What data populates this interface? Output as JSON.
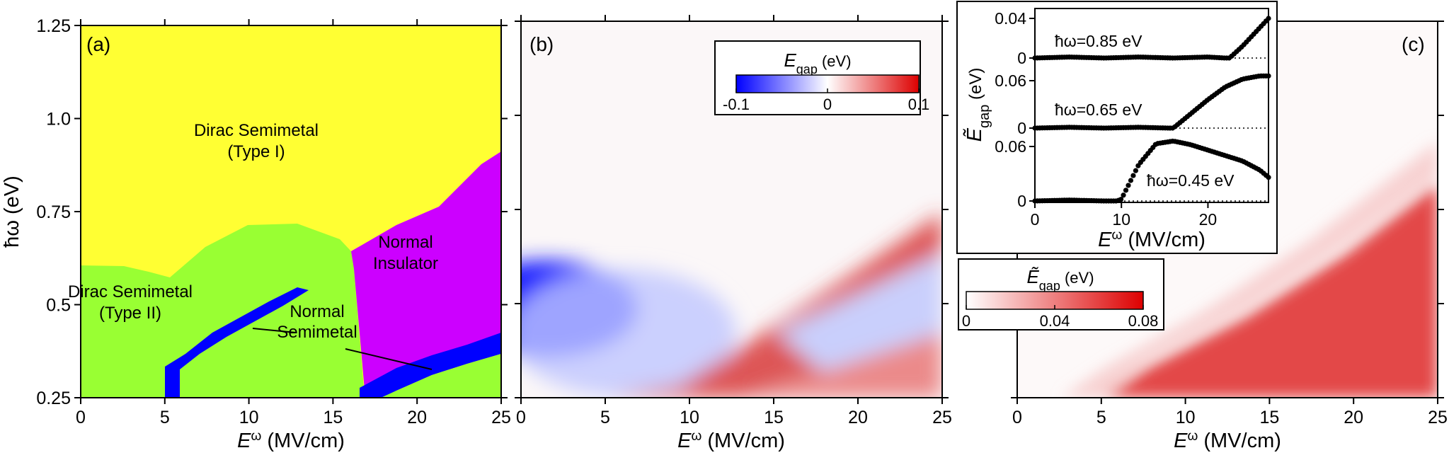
{
  "chart_data": [
    {
      "type": "heatmap",
      "panel_letter": "(a)",
      "title": "",
      "xlabel_base": "E",
      "xlabel_sup": "ω",
      "xlabel_unit": " (MV/cm)",
      "ylabel": "ħω (eV)",
      "xlim": [
        0,
        25
      ],
      "ylim": [
        0.25,
        1.25
      ],
      "xticks": [
        "0",
        "5",
        "10",
        "15",
        "20",
        "25"
      ],
      "yticks": [
        "0.25",
        "0.5",
        "0.75",
        "1.0",
        "1.25"
      ],
      "regions": [
        {
          "name": "Dirac Semimetal (Type I)",
          "line1": "Dirac Semimetal",
          "line2": "(Type I)",
          "color": "#ffff33"
        },
        {
          "name": "Dirac Semimetal (Type II)",
          "line1": "Dirac Semimetal",
          "line2": "(Type II)",
          "color": "#99ff33"
        },
        {
          "name": "Normal Insulator",
          "line1": "Normal",
          "line2": "Insulator",
          "color": "#cc00ff"
        },
        {
          "name": "Normal Semimetal",
          "line1": "Normal",
          "line2": "Semimetal",
          "color": "#0000ff"
        }
      ],
      "boundaries": {
        "typeI_typeII": [
          [
            0,
            0.6
          ],
          [
            5,
            0.55
          ],
          [
            8,
            0.65
          ],
          [
            13,
            0.72
          ],
          [
            15,
            0.68
          ]
        ],
        "insulator_upper": [
          [
            13,
            0.6
          ],
          [
            20,
            0.75
          ],
          [
            25,
            0.9
          ]
        ],
        "semimetal_band_upper": [
          [
            5,
            0.33
          ],
          [
            14,
            0.63
          ]
        ],
        "semimetal_band_lower": [
          [
            15,
            0.25
          ],
          [
            25,
            0.43
          ]
        ]
      }
    },
    {
      "type": "heatmap",
      "panel_letter": "(b)",
      "title": "",
      "xlabel_base": "E",
      "xlabel_sup": "ω",
      "xlabel_unit": " (MV/cm)",
      "ylabel": "",
      "xlim": [
        0,
        25
      ],
      "ylim": [
        0.25,
        1.25
      ],
      "xticks": [
        "0",
        "5",
        "10",
        "15",
        "20",
        "25"
      ],
      "colorbar": {
        "title_base": "E",
        "title_sub": "gap",
        "title_unit": " (eV)",
        "min": -0.1,
        "max": 0.1,
        "ticks": [
          "-0.1",
          "0",
          "0.1"
        ],
        "colors": [
          "#0000ff",
          "#ffffff",
          "#dd0000"
        ]
      }
    },
    {
      "type": "heatmap",
      "panel_letter": "(c)",
      "title": "",
      "xlabel_base": "E",
      "xlabel_sup": "ω",
      "xlabel_unit": " (MV/cm)",
      "ylabel": "",
      "xlim": [
        0,
        25
      ],
      "ylim": [
        0.25,
        1.25
      ],
      "xticks": [
        "0",
        "5",
        "10",
        "15",
        "20",
        "25"
      ],
      "colorbar": {
        "title_base": "E",
        "title_sub": "gap",
        "title_unit": " (eV)",
        "min": 0,
        "max": 0.08,
        "ticks": [
          "0",
          "0.04",
          "0.08"
        ],
        "colors": [
          "#ffffff",
          "#dd0000"
        ]
      }
    },
    {
      "type": "line",
      "title": "",
      "xlabel_base": "E",
      "xlabel_sup": "ω",
      "xlabel_unit": " (MV/cm)",
      "ylabel_base": "E",
      "ylabel_sub": "gap",
      "ylabel_unit": " (eV)",
      "xlim": [
        0,
        27
      ],
      "xticks": [
        "0",
        "10",
        "20"
      ],
      "series": [
        {
          "name": "ħω=0.85 eV",
          "ylim": [
            -0.01,
            0.045
          ],
          "yticks": [
            "0.04",
            "0"
          ],
          "x": [
            0,
            4,
            8,
            12,
            16,
            20,
            22,
            22.5,
            24,
            25.5,
            27
          ],
          "y": [
            0,
            0.001,
            0,
            0.001,
            0,
            0.001,
            0,
            0,
            0.012,
            0.026,
            0.04
          ]
        },
        {
          "name": "ħω=0.65 eV",
          "ylim": [
            -0.01,
            0.075
          ],
          "yticks": [
            "0.06",
            "0"
          ],
          "x": [
            0,
            4,
            8,
            12,
            15.5,
            16,
            18,
            20,
            22,
            24,
            26,
            27
          ],
          "y": [
            0,
            0.001,
            0,
            0.001,
            0,
            0,
            0.018,
            0.036,
            0.052,
            0.062,
            0.066,
            0.066
          ]
        },
        {
          "name": "ħω=0.45 eV",
          "ylim": [
            -0.01,
            0.075
          ],
          "yticks": [
            "0.06",
            "0"
          ],
          "x": [
            0,
            4,
            8,
            9.5,
            10,
            12,
            14,
            16,
            18,
            20,
            22,
            24,
            26,
            27
          ],
          "y": [
            0,
            0.001,
            0,
            0,
            0.002,
            0.04,
            0.063,
            0.066,
            0.062,
            0.056,
            0.05,
            0.044,
            0.034,
            0.026
          ]
        }
      ]
    }
  ]
}
